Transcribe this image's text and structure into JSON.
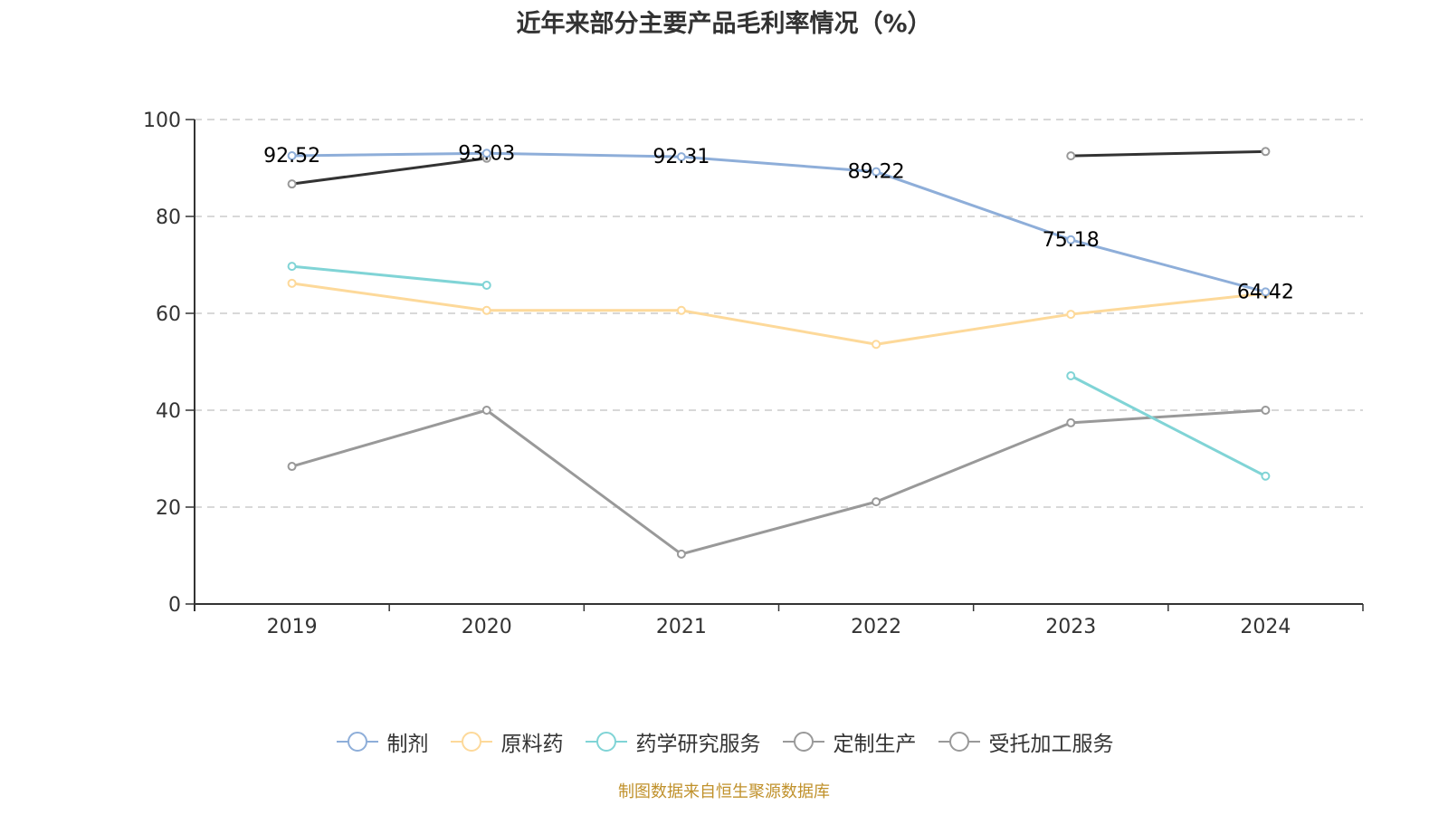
{
  "chart_data": {
    "type": "line",
    "title": "近年来部分主要产品毛利率情况（%）",
    "xlabel": "",
    "ylabel": "",
    "categories": [
      "2019",
      "2020",
      "2021",
      "2022",
      "2023",
      "2024"
    ],
    "ylim": [
      0,
      100
    ],
    "yticks": [
      "0",
      "20",
      "40",
      "60",
      "80",
      "100"
    ],
    "grid": true,
    "legend_position": "bottom",
    "series": [
      {
        "name": "制剂",
        "color": "#8eaed9",
        "values": [
          92.52,
          93.03,
          92.31,
          89.22,
          75.18,
          64.42
        ],
        "labels": [
          "92.52",
          "93.03",
          "92.31",
          "89.22",
          "75.18",
          "64.42"
        ]
      },
      {
        "name": "原料药",
        "color": "#fdd99a",
        "values": [
          66.2,
          60.6,
          60.6,
          53.6,
          59.8,
          64.1
        ]
      },
      {
        "name": "药学研究服务",
        "color": "#80d4d6",
        "values": [
          69.7,
          65.8,
          null,
          null,
          47.1,
          26.4
        ]
      },
      {
        "name": "定制生产",
        "color": "#333333",
        "marker_color": "#999999",
        "legend_color": "#9a9a9a",
        "values": [
          86.7,
          92.0,
          null,
          null,
          92.5,
          93.4
        ]
      },
      {
        "name": "受托加工服务",
        "color": "#999999",
        "values": [
          28.4,
          40.0,
          10.3,
          21.1,
          37.4,
          40.0
        ]
      }
    ]
  },
  "source": {
    "text": "制图数据来自恒生聚源数据库",
    "color": "#c0912b"
  }
}
